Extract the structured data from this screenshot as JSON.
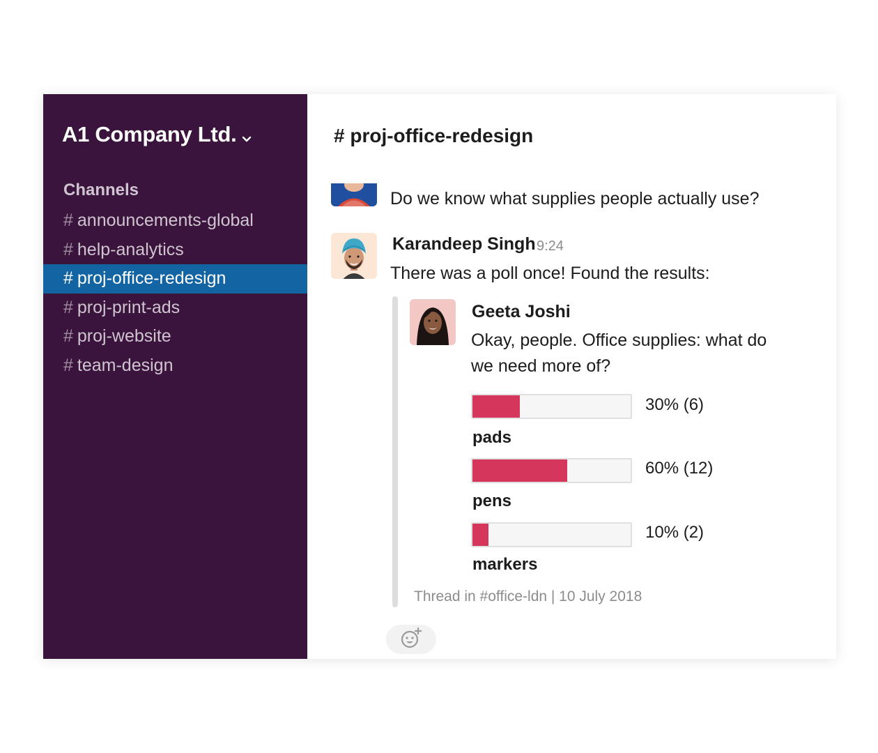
{
  "workspace": {
    "name": "A1 Company Ltd."
  },
  "sidebar": {
    "channels_header": "Channels",
    "channels": [
      {
        "name": "announcements-global",
        "active": false
      },
      {
        "name": "help-analytics",
        "active": false
      },
      {
        "name": "proj-office-redesign",
        "active": true
      },
      {
        "name": "proj-print-ads",
        "active": false
      },
      {
        "name": "proj-website",
        "active": false
      },
      {
        "name": "team-design",
        "active": false
      }
    ],
    "hash": "#"
  },
  "channel": {
    "title": "# proj-office-redesign"
  },
  "messages": [
    {
      "text": "Do we know what supplies people actually use?"
    },
    {
      "author": "Karandeep Singh",
      "time": "9:24",
      "text": "There was a poll once! Found the results:"
    }
  ],
  "shared_post": {
    "author": "Geeta Joshi",
    "text_line1": "Okay, people. Office supplies: what do",
    "text_line2": "we need more of?",
    "poll": [
      {
        "label": "pads",
        "result": "30% (6)",
        "fraction": 0.3
      },
      {
        "label": "pens",
        "result": "60% (12)",
        "fraction": 0.6
      },
      {
        "label": "markers",
        "result": "10% (2)",
        "fraction": 0.1
      }
    ],
    "meta": "Thread in #office-ldn | 10 July 2018"
  },
  "icons": {
    "workspace_menu": "chevron-down-icon",
    "add_reaction": "add-reaction-icon"
  },
  "colors": {
    "sidebar_bg": "#3b143d",
    "active_channel": "#1264a3",
    "poll_fill": "#d5365c"
  }
}
